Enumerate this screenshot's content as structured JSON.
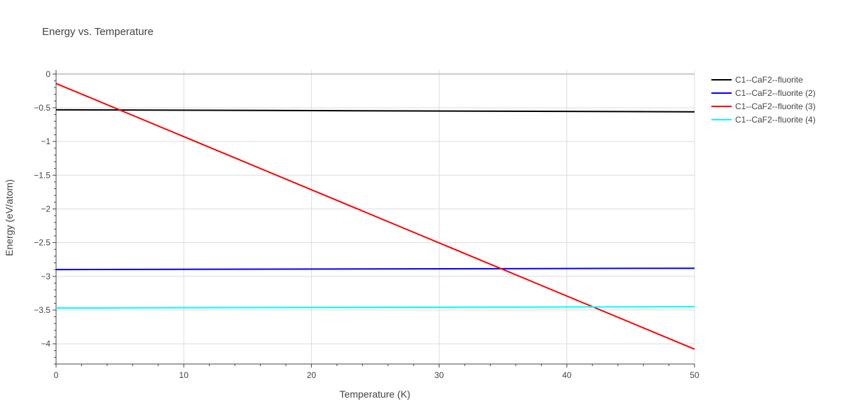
{
  "chart_data": {
    "type": "line",
    "title": "Energy vs. Temperature",
    "xlabel": "Temperature (K)",
    "ylabel": "Energy (eV/atom)",
    "xlim": [
      0,
      50
    ],
    "ylim": [
      -4.3,
      0.06
    ],
    "grid": true,
    "legend_position": "top-right",
    "x_ticks": [
      0,
      10,
      20,
      30,
      40,
      50
    ],
    "x_tick_labels": [
      "0",
      "10",
      "20",
      "30",
      "40",
      "50"
    ],
    "y_ticks": [
      0,
      -0.5,
      -1,
      -1.5,
      -2,
      -2.5,
      -3,
      -3.5,
      -4
    ],
    "y_tick_labels": [
      "0",
      "−0.5",
      "−1",
      "−1.5",
      "−2",
      "−2.5",
      "−3",
      "−3.5",
      "−4"
    ],
    "x": [
      0,
      50
    ],
    "series": [
      {
        "name": "C1--CaF2--fluorite",
        "color": "#000000",
        "values": [
          -0.53,
          -0.56
        ]
      },
      {
        "name": "C1--CaF2--fluorite (2)",
        "color": "#0000ff",
        "values": [
          -2.9,
          -2.88
        ]
      },
      {
        "name": "C1--CaF2--fluorite (3)",
        "color": "#ff0000",
        "values": [
          -0.14,
          -4.08
        ]
      },
      {
        "name": "C1--CaF2--fluorite (4)",
        "color": "#00ffff",
        "values": [
          -3.47,
          -3.45
        ]
      }
    ]
  }
}
